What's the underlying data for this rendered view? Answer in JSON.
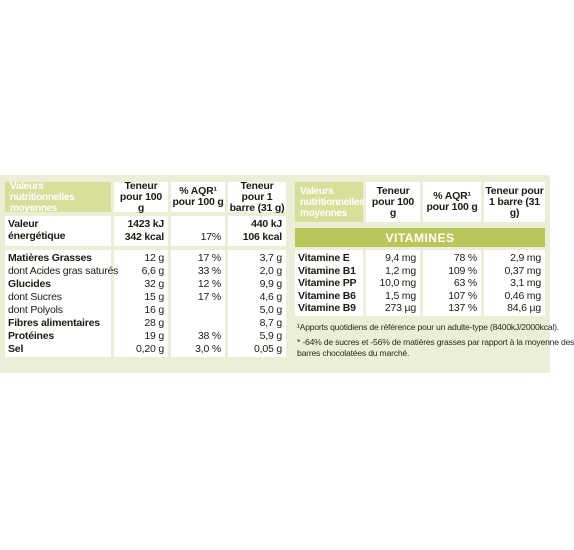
{
  "left_table": {
    "headers": [
      "Valeurs nutritionnelles moyennes",
      "Teneur pour 100 g",
      "% AQR¹ pour 100 g",
      "Teneur pour 1 barre (31 g)"
    ],
    "energy": {
      "label": "Valeur énergétique",
      "kj_100": "1423 kJ",
      "kcal_100": "342 kcal",
      "aqr": "17%",
      "kj_bar": "440 kJ",
      "kcal_bar": "106 kcal"
    },
    "rows": [
      {
        "label": "Matières Grasses",
        "bold": true,
        "v100": "12 g",
        "aqr": "17 %",
        "vbar": "3,7 g"
      },
      {
        "label": "dont Acides gras saturés",
        "bold": false,
        "v100": "6,6 g",
        "aqr": "33 %",
        "vbar": "2,0 g"
      },
      {
        "label": "Glucides",
        "bold": true,
        "v100": "32 g",
        "aqr": "12 %",
        "vbar": "9,9 g"
      },
      {
        "label": "dont Sucres",
        "bold": false,
        "v100": "15 g",
        "aqr": "17 %",
        "vbar": "4,6 g"
      },
      {
        "label": "dont Polyols",
        "bold": false,
        "v100": "16 g",
        "aqr": "",
        "vbar": "5,0 g"
      },
      {
        "label": "Fibres alimentaires",
        "bold": true,
        "v100": "28 g",
        "aqr": "",
        "vbar": "8,7 g"
      },
      {
        "label": "Protéines",
        "bold": true,
        "v100": "19 g",
        "aqr": "38 %",
        "vbar": "5,9 g"
      },
      {
        "label": "Sel",
        "bold": true,
        "v100": "0,20 g",
        "aqr": "3,0 %",
        "vbar": "0,05 g"
      }
    ]
  },
  "right_table": {
    "headers": [
      "Valeurs nutritionnelles moyennes",
      "Teneur pour 100 g",
      "% AQR¹ pour 100 g",
      "Teneur pour 1 barre (31 g)"
    ],
    "section_title": "VITAMINES",
    "rows": [
      {
        "label": "Vitamine E",
        "v100": "9,4 mg",
        "aqr": "78 %",
        "vbar": "2,9 mg"
      },
      {
        "label": "Vitamine B1",
        "v100": "1,2 mg",
        "aqr": "109 %",
        "vbar": "0,37 mg"
      },
      {
        "label": "Vitamine PP",
        "v100": "10,0 mg",
        "aqr": "63 %",
        "vbar": "3,1 mg"
      },
      {
        "label": "Vitamine B6",
        "v100": "1,5 mg",
        "aqr": "107 %",
        "vbar": "0,46 mg"
      },
      {
        "label": "Vitamine B9",
        "v100": "273 µg",
        "aqr": "137 %",
        "vbar": "84,6 µg"
      }
    ],
    "notes": [
      "¹Apports quotidiens de référence pour un adulte-type (8400kJ/2000kcal).",
      "* -64% de sucres et -56% de matières grasses par rapport à la moyenne des",
      "barres chocolatées du marché."
    ]
  },
  "colors": {
    "panel": "#ecefd7",
    "header_green": "#d7df9a",
    "band_green": "#b9c65a"
  }
}
